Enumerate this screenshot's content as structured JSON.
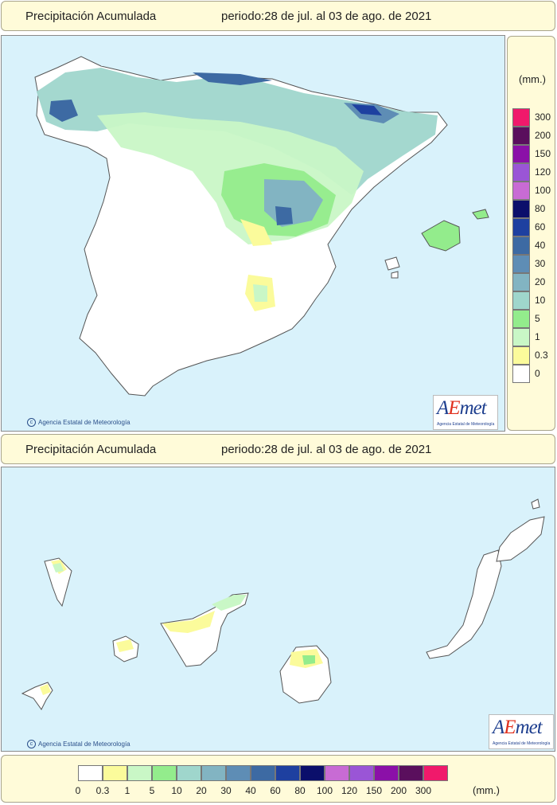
{
  "top": {
    "title": "Precipitación Acumulada",
    "period": "periodo:28 de jul. al 03 de ago. de 2021",
    "credit": "Agencia Estatal de Meteorología",
    "logo": "AEmet",
    "logo_sub": "Agencia Estatal de Meteorología"
  },
  "bottom": {
    "title": "Precipitación Acumulada",
    "period": "periodo:28 de jul. al 03 de ago. de 2021",
    "credit": "Agencia Estatal de Meteorología",
    "logo": "AEmet",
    "logo_sub": "Agencia Estatal de Meteorología"
  },
  "legend": {
    "unit": "(mm.)",
    "classes": [
      {
        "label": "0",
        "color": "#ffffff"
      },
      {
        "label": "0.3",
        "color": "#fbfb9b"
      },
      {
        "label": "1",
        "color": "#c9f7c6"
      },
      {
        "label": "5",
        "color": "#93ec8c"
      },
      {
        "label": "10",
        "color": "#9fd6cc"
      },
      {
        "label": "20",
        "color": "#82b4c2"
      },
      {
        "label": "30",
        "color": "#5e8db5"
      },
      {
        "label": "40",
        "color": "#3d6aa3"
      },
      {
        "label": "60",
        "color": "#1e40a0"
      },
      {
        "label": "80",
        "color": "#0b0f6b"
      },
      {
        "label": "100",
        "color": "#c86bd4"
      },
      {
        "label": "120",
        "color": "#9a55d6"
      },
      {
        "label": "150",
        "color": "#8b10a8"
      },
      {
        "label": "200",
        "color": "#5a0f5d"
      },
      {
        "label": "300",
        "color": "#f0196b"
      }
    ]
  }
}
